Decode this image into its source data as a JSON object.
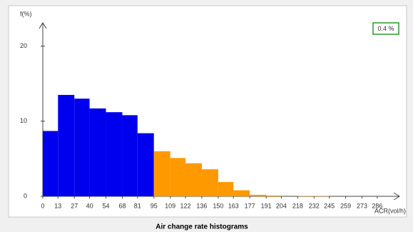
{
  "chart_data": {
    "type": "histogram",
    "title": "Air change rate histograms",
    "y_label": "f(%)",
    "x_label": "ACR(vol/h)",
    "badge": "0.4 %",
    "bins": [
      0,
      13,
      27,
      40,
      54,
      68,
      81,
      95,
      109,
      122,
      136,
      150,
      163,
      177,
      191,
      204,
      218,
      232,
      245,
      259,
      273,
      286
    ],
    "counts": [
      8.7,
      13.5,
      13.0,
      11.7,
      11.2,
      10.8,
      8.4,
      6.0,
      5.1,
      4.4,
      3.6,
      1.9,
      0.8,
      0.2,
      0.1,
      0,
      0.05,
      0.05,
      0,
      0,
      0
    ],
    "bar_colors": [
      "#0000ee",
      "#0000ee",
      "#0000ee",
      "#0000ee",
      "#0000ee",
      "#0000ee",
      "#0000ee",
      "#ff9900",
      "#ff9900",
      "#ff9900",
      "#ff9900",
      "#ff9900",
      "#ff9900",
      "#ff9900",
      "#ff9900",
      "#ff9900",
      "#ff9900",
      "#ff9900",
      "#ff9900",
      "#ff9900",
      "#ff9900"
    ],
    "xlim": [
      0,
      305
    ],
    "ylim": [
      0,
      23
    ],
    "yticks": [
      0,
      10,
      20
    ]
  }
}
